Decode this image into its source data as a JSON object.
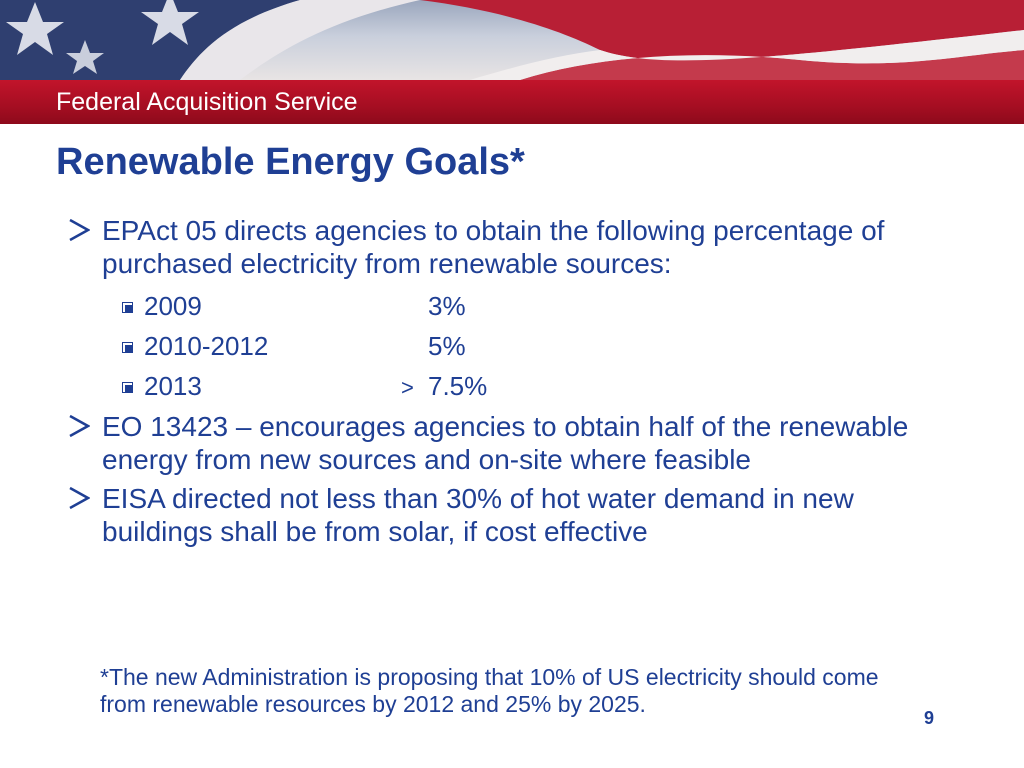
{
  "header": {
    "service_name": "Federal Acquisition Service"
  },
  "slide": {
    "title": "Renewable Energy Goals*",
    "bullets": [
      {
        "text": "EPAct 05 directs agencies to obtain the following percentage of purchased electricity from renewable sources:"
      },
      {
        "text": "EO 13423 – encourages agencies to obtain half of the renewable energy from new sources and on-site where feasible"
      },
      {
        "text": "EISA directed not less than 30% of hot water demand in new buildings shall be from solar, if cost effective"
      }
    ],
    "schedule": [
      {
        "year": "2009",
        "comparator": "",
        "percent": "3%"
      },
      {
        "year": "2010-2012",
        "comparator": "",
        "percent": "5%"
      },
      {
        "year": "2013",
        "comparator": ">",
        "percent": "7.5%"
      }
    ],
    "footnote": "*The new Administration is proposing that 10% of US electricity should come from renewable resources by 2012 and 25% by 2025.",
    "page_number": "9"
  },
  "colors": {
    "title_blue": "#1f3f94",
    "banner_red": "#a50e22"
  },
  "icons": {
    "bullet": "arrowhead-bullet-icon",
    "sub_bullet": "square-checkbox-bullet-icon",
    "banner": "flag-stars-stripes-icon"
  }
}
